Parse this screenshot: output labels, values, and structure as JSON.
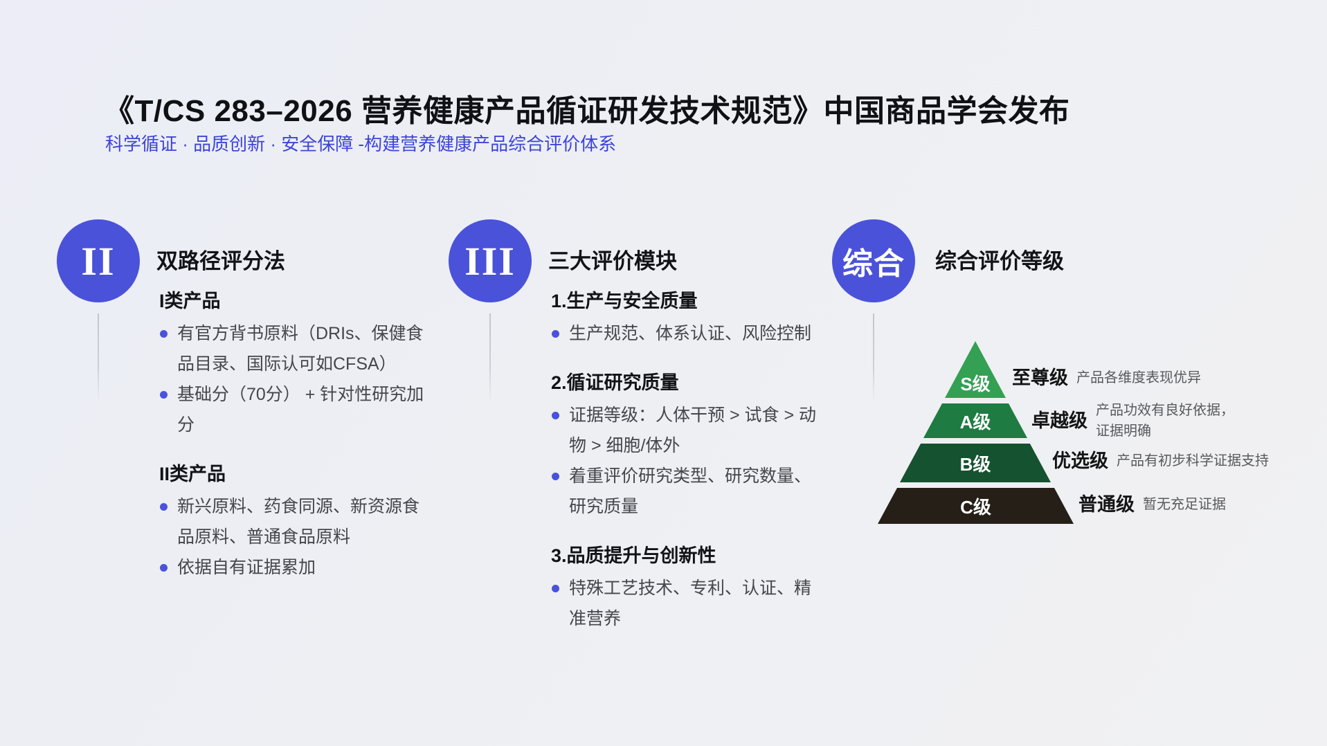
{
  "header": {
    "title": "《T/CS 283–2026 营养健康产品循证研发技术规范》中国商品学会发布",
    "subtitle": "科学循证 · 品质创新 · 安全保障 -构建营养健康产品综合评价体系"
  },
  "colors": {
    "accent_blue": "#4A52DA",
    "subtitle_blue": "#3C44DA",
    "tier_s_green": "#33A053",
    "tier_a_green": "#1E7B41",
    "tier_b_green": "#155230",
    "tier_c_dark": "#261F18",
    "body_text": "#45464B",
    "background": "#EDEFF3"
  },
  "columns": [
    {
      "badge": "II",
      "heading": "双路径评分法",
      "sections": [
        {
          "subheading": "I类产品",
          "bullets": [
            "有官方背书原料（DRIs、保健食品目录、国际认可如CFSA）",
            "基础分（70分） + 针对性研究加分"
          ]
        },
        {
          "subheading": "II类产品",
          "bullets": [
            "新兴原料、药食同源、新资源食品原料、普通食品原料",
            "依据自有证据累加"
          ]
        }
      ]
    },
    {
      "badge": "III",
      "heading": "三大评价模块",
      "sections": [
        {
          "subheading": "1.生产与安全质量",
          "bullets": [
            "生产规范、体系认证、风险控制"
          ]
        },
        {
          "subheading": "2.循证研究质量",
          "bullets": [
            "证据等级：人体干预 > 试食 > 动物 > 细胞/体外",
            "着重评价研究类型、研究数量、研究质量"
          ]
        },
        {
          "subheading": "3.品质提升与创新性",
          "bullets": [
            "特殊工艺技术、专利、认证、精准营养"
          ]
        }
      ]
    },
    {
      "badge": "综合",
      "heading": "综合评价等级",
      "pyramid": {
        "tiers": [
          {
            "level": "S级",
            "grade": "至尊级",
            "color": "#33A053",
            "desc_lines": [
              "产品各维度表现优异"
            ]
          },
          {
            "level": "A级",
            "grade": "卓越级",
            "color": "#1E7B41",
            "desc_lines": [
              "产品功效有良好依据，",
              "证据明确"
            ]
          },
          {
            "level": "B级",
            "grade": "优选级",
            "color": "#155230",
            "desc_lines": [
              "产品有初步科学证据支持"
            ]
          },
          {
            "level": "C级",
            "grade": "普通级",
            "color": "#261F18",
            "desc_lines": [
              "暂无充足证据"
            ]
          }
        ]
      }
    }
  ]
}
